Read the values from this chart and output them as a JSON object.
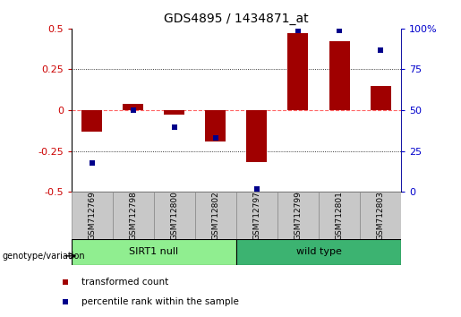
{
  "title": "GDS4895 / 1434871_at",
  "samples": [
    "GSM712769",
    "GSM712798",
    "GSM712800",
    "GSM712802",
    "GSM712797",
    "GSM712799",
    "GSM712801",
    "GSM712803"
  ],
  "groups": [
    {
      "label": "SIRT1 null",
      "indices": [
        0,
        1,
        2,
        3
      ],
      "color": "#90EE90"
    },
    {
      "label": "wild type",
      "indices": [
        4,
        5,
        6,
        7
      ],
      "color": "#3CB371"
    }
  ],
  "transformed_count": [
    -0.13,
    0.04,
    -0.03,
    -0.19,
    -0.32,
    0.47,
    0.42,
    0.15
  ],
  "percentile_rank_pct": [
    17.5,
    50.0,
    39.5,
    33.0,
    2.0,
    99.0,
    99.0,
    87.0
  ],
  "bar_color": "#A00000",
  "dot_color": "#00008B",
  "left_ylim": [
    -0.5,
    0.5
  ],
  "right_ylim": [
    0,
    100
  ],
  "left_yticks": [
    -0.5,
    -0.25,
    0.0,
    0.25,
    0.5
  ],
  "right_yticks": [
    0,
    25,
    50,
    75,
    100
  ],
  "left_yticklabels": [
    "-0.5",
    "-0.25",
    "0",
    "0.25",
    "0.5"
  ],
  "right_yticklabels": [
    "0",
    "25",
    "50",
    "75",
    "100%"
  ],
  "hline_color": "#FF6666",
  "dotted_color": "#000000",
  "group_label_prefix": "genotype/variation",
  "legend_items": [
    {
      "label": "transformed count",
      "color": "#A00000"
    },
    {
      "label": "percentile rank within the sample",
      "color": "#00008B"
    }
  ],
  "bar_width": 0.5,
  "dot_marker_size": 5,
  "label_box_color": "#C8C8C8",
  "label_box_edge_color": "#888888"
}
